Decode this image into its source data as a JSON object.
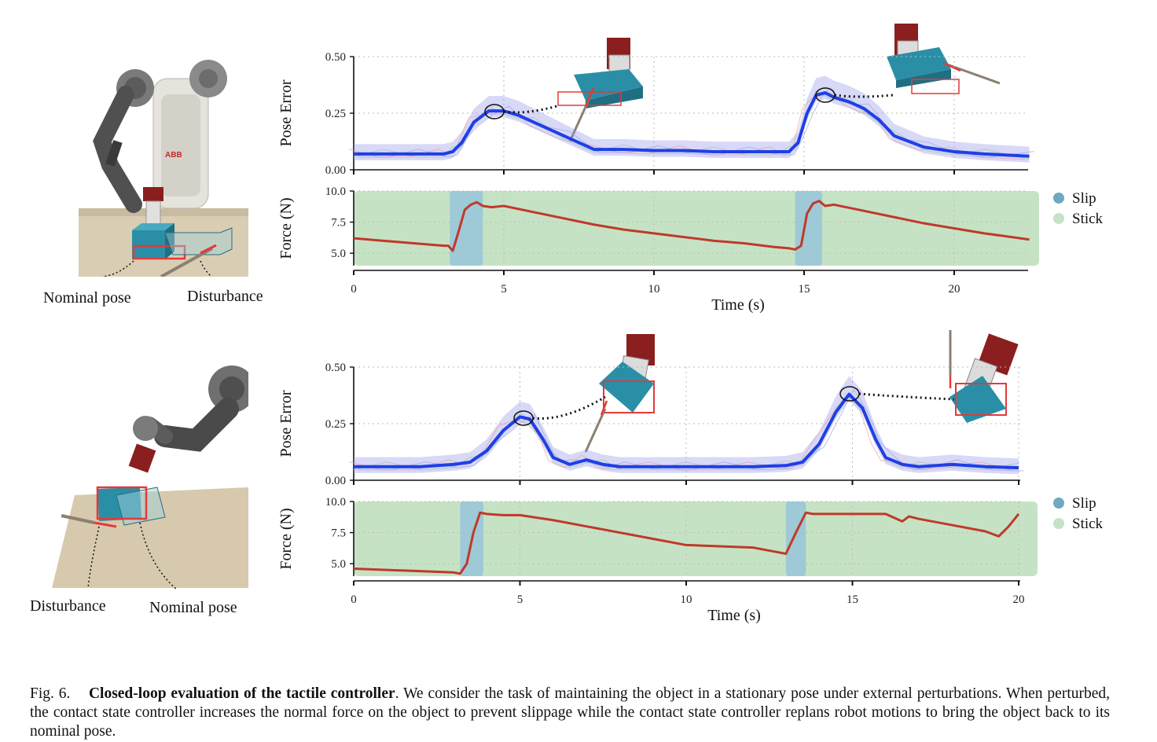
{
  "photos": [
    {
      "labels": [
        "Nominal pose",
        "Disturbance"
      ],
      "robot_brand": "ABB"
    },
    {
      "labels": [
        "Disturbance",
        "Nominal pose"
      ]
    }
  ],
  "legend": {
    "slip": "Slip",
    "stick": "Stick"
  },
  "colors": {
    "mean": "#1f3fe6",
    "band": "#8e8ee8",
    "force": "#c0392b",
    "slip": "#9ec9d6",
    "stick": "#c5e3c4",
    "box": "#2a8fa6",
    "outline": "#e23a3a"
  },
  "caption": {
    "fig_label": "Fig. 6.",
    "title": "Closed-loop evaluation of the tactile controller",
    "body": ". We consider the task of maintaining the object in a stationary pose under external perturbations. When perturbed, the contact state controller increases the normal force on the object to prevent slippage while the contact state controller replans robot motions to bring the object back to its nominal pose."
  },
  "chart_data": [
    {
      "type": "line",
      "panel": "top",
      "ylabel": "Pose Error",
      "ylim": [
        0,
        0.5
      ],
      "yticks": [
        "0.00",
        "0.25",
        "0.50"
      ],
      "xlim": [
        0,
        22.5
      ],
      "x": [
        0,
        1,
        2,
        3,
        3.3,
        3.6,
        4,
        4.5,
        5,
        5.5,
        6,
        7,
        8,
        9,
        10,
        11,
        12,
        13,
        14,
        14.5,
        14.8,
        15.1,
        15.4,
        15.7,
        16,
        16.5,
        17,
        17.5,
        18,
        19,
        20,
        21,
        22.5
      ],
      "series": [
        {
          "values": [
            0.07,
            0.07,
            0.07,
            0.07,
            0.08,
            0.12,
            0.21,
            0.26,
            0.26,
            0.24,
            0.21,
            0.15,
            0.09,
            0.09,
            0.085,
            0.085,
            0.08,
            0.08,
            0.08,
            0.08,
            0.12,
            0.25,
            0.33,
            0.34,
            0.32,
            0.3,
            0.27,
            0.22,
            0.15,
            0.1,
            0.08,
            0.07,
            0.06
          ]
        }
      ]
    },
    {
      "type": "line",
      "panel": "top",
      "ylabel": "Force (N)",
      "xlabel": "Time (s)",
      "ylim": [
        4.0,
        10.0
      ],
      "yticks": [
        "5.0",
        "7.5",
        "10.0"
      ],
      "xlim": [
        0,
        22.5
      ],
      "xticks": [
        "0",
        "5",
        "10",
        "15",
        "20"
      ],
      "x": [
        0,
        1,
        2,
        3,
        3.15,
        3.3,
        3.5,
        3.7,
        3.9,
        4.1,
        4.3,
        4.6,
        5,
        6,
        7,
        8,
        9,
        10,
        11,
        12,
        13,
        14,
        14.5,
        14.7,
        14.9,
        15.1,
        15.3,
        15.5,
        15.7,
        16,
        17,
        18,
        19,
        20,
        21,
        22.5
      ],
      "series": [
        {
          "values": [
            6.2,
            6.0,
            5.8,
            5.6,
            5.6,
            5.2,
            6.8,
            8.5,
            8.9,
            9.1,
            8.8,
            8.7,
            8.8,
            8.3,
            7.8,
            7.3,
            6.9,
            6.6,
            6.3,
            6.0,
            5.8,
            5.5,
            5.4,
            5.3,
            5.6,
            8.2,
            9.0,
            9.2,
            8.8,
            8.9,
            8.4,
            7.9,
            7.4,
            7.0,
            6.6,
            6.1
          ]
        }
      ],
      "slip_intervals": [
        [
          3.2,
          4.3
        ],
        [
          14.7,
          15.6
        ]
      ]
    },
    {
      "type": "line",
      "panel": "bottom",
      "ylabel": "Pose Error",
      "ylim": [
        0,
        0.5
      ],
      "yticks": [
        "0.00",
        "0.25",
        "0.50"
      ],
      "xlim": [
        0,
        20
      ],
      "x": [
        0,
        1,
        2,
        3,
        3.5,
        4,
        4.5,
        5,
        5.3,
        5.7,
        6,
        6.5,
        7,
        7.5,
        8,
        9,
        10,
        11,
        12,
        13,
        13.5,
        14,
        14.5,
        14.9,
        15.3,
        15.7,
        16,
        16.5,
        17,
        18,
        19,
        20
      ],
      "series": [
        {
          "values": [
            0.06,
            0.06,
            0.06,
            0.07,
            0.08,
            0.13,
            0.22,
            0.28,
            0.27,
            0.18,
            0.1,
            0.07,
            0.09,
            0.07,
            0.06,
            0.06,
            0.06,
            0.06,
            0.06,
            0.065,
            0.08,
            0.16,
            0.3,
            0.38,
            0.32,
            0.18,
            0.1,
            0.07,
            0.06,
            0.07,
            0.06,
            0.055
          ]
        }
      ]
    },
    {
      "type": "line",
      "panel": "bottom",
      "ylabel": "Force (N)",
      "xlabel": "Time (s)",
      "ylim": [
        4.0,
        10.0
      ],
      "yticks": [
        "5.0",
        "7.5",
        "10.0"
      ],
      "xlim": [
        0,
        20
      ],
      "xticks": [
        "0",
        "5",
        "10",
        "15",
        "20"
      ],
      "x": [
        0,
        1,
        2,
        3,
        3.2,
        3.4,
        3.6,
        3.8,
        4,
        4.5,
        5,
        6,
        7,
        8,
        9,
        10,
        11,
        12,
        12.6,
        13,
        13.3,
        13.6,
        13.8,
        14,
        15,
        16,
        16.5,
        16.7,
        17,
        18,
        19,
        19.4,
        19.7,
        20
      ],
      "series": [
        {
          "values": [
            4.6,
            4.5,
            4.4,
            4.3,
            4.2,
            5.0,
            7.5,
            9.1,
            9.0,
            8.9,
            8.9,
            8.5,
            8.0,
            7.5,
            7.0,
            6.5,
            6.4,
            6.3,
            6.0,
            5.8,
            7.5,
            9.1,
            9.0,
            9.0,
            9.0,
            9.0,
            8.4,
            8.8,
            8.6,
            8.1,
            7.6,
            7.2,
            8.0,
            9.0
          ]
        }
      ],
      "slip_intervals": [
        [
          3.2,
          3.9
        ],
        [
          13.0,
          13.6
        ]
      ]
    }
  ]
}
